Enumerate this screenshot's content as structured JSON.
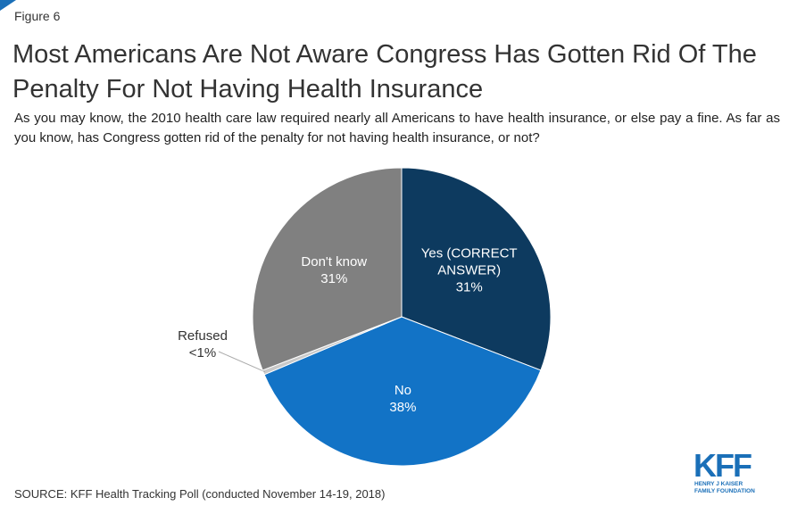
{
  "chart_data": {
    "type": "pie",
    "figure_label": "Figure 6",
    "title": "Most Americans Are Not Aware Congress Has Gotten Rid Of The Penalty For Not Having Health Insurance",
    "subtitle": "As you may know, the 2010 health care law required nearly all Americans to have health insurance, or else pay a fine. As far as you know, has Congress gotten rid of the penalty for not having health insurance, or not?",
    "categories": [
      "Yes (CORRECT ANSWER)",
      "No",
      "Refused",
      "Don't know"
    ],
    "values": [
      31,
      38,
      0.5,
      31
    ],
    "value_labels": [
      "31%",
      "38%",
      "<1%",
      "31%"
    ],
    "colors": [
      "#0d3a5f",
      "#1273c6",
      "#c9c9c9",
      "#808080"
    ],
    "source": "SOURCE: KFF Health Tracking Poll (conducted November 14-19, 2018)",
    "logo_text": "KFF",
    "logo_subtext": [
      "HENRY J KAISER",
      "FAMILY FOUNDATION"
    ]
  }
}
